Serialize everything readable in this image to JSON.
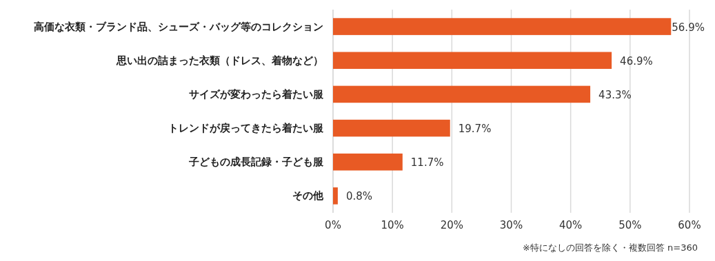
{
  "chart_data": {
    "type": "bar",
    "orientation": "horizontal",
    "categories": [
      "高価な衣類・ブランド品、シューズ・バッグ等のコレクション",
      "思い出の詰まった衣類（ドレス、着物など）",
      "サイズが変わったら着たい服",
      "トレンドが戻ってきたら着たい服",
      "子どもの成長記録・子ども服",
      "その他"
    ],
    "values": [
      56.9,
      46.9,
      43.3,
      19.7,
      11.7,
      0.8
    ],
    "value_labels": [
      "56.9%",
      "46.9%",
      "43.3%",
      "19.7%",
      "11.7%",
      "0.8%"
    ],
    "color": "#e85a24",
    "xlim": [
      0,
      60
    ],
    "xticks": [
      {
        "value": 0,
        "label": "0%"
      },
      {
        "value": 10,
        "label": "10%"
      },
      {
        "value": 20,
        "label": "20%"
      },
      {
        "value": 30,
        "label": "30%"
      },
      {
        "value": 40,
        "label": "40%"
      },
      {
        "value": 50,
        "label": "50%"
      },
      {
        "value": 60,
        "label": "60%"
      }
    ],
    "grid": "x",
    "annotations": [
      "※特になしの回答を除く・複数回答 n=360"
    ]
  }
}
